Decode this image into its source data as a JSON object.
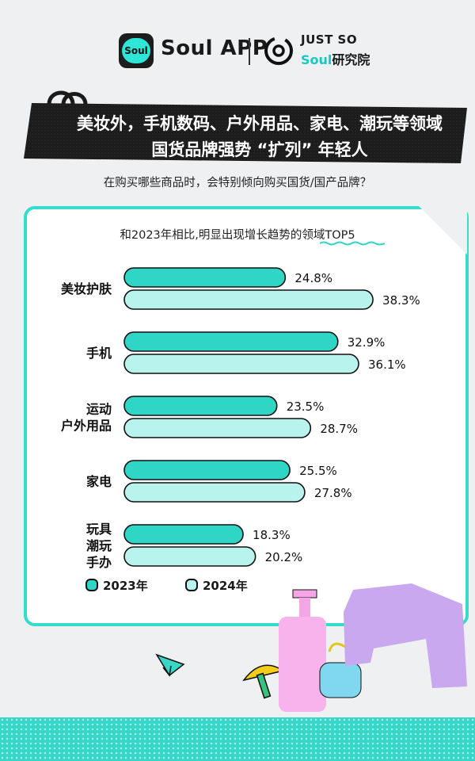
{
  "header": {
    "app_title": "Soul APP",
    "logo_text": "Soul",
    "partner_top": "JUST SO",
    "partner_bottom_brand": "Soul",
    "partner_bottom_text": "研究院"
  },
  "headline": {
    "line1": "美妆外，手机数码、户外用品、家电、潮玩等领域",
    "line2": "国货品牌强势 “扩列” 年轻人"
  },
  "question": "在购买哪些商品时，会特别倾向购买国货/国产品牌？",
  "chart_title": "和2023年相比,明显出现增长趋势的领域TOP5",
  "colors": {
    "series_2023": "#2fd6c6",
    "series_2024": "#b9f3ee",
    "outline": "#111111",
    "card_border": "#34dccc"
  },
  "chart_data": {
    "type": "bar",
    "orientation": "horizontal",
    "title": "和2023年相比,明显出现增长趋势的领域TOP5",
    "categories": [
      [
        "美妆护肤"
      ],
      [
        "手机"
      ],
      [
        "运动",
        "户外用品"
      ],
      [
        "家电"
      ],
      [
        "玩具",
        "潮玩",
        "手办"
      ]
    ],
    "series": [
      {
        "name": "2023年",
        "values": [
          24.8,
          32.9,
          23.5,
          25.5,
          18.3
        ],
        "labels": [
          "24.8%",
          "32.9%",
          "23.5%",
          "25.5%",
          "18.3%"
        ]
      },
      {
        "name": "2024年",
        "values": [
          38.3,
          36.1,
          28.7,
          27.8,
          20.2
        ],
        "labels": [
          "38.3%",
          "36.1%",
          "28.7%",
          "27.8%",
          "20.2%"
        ]
      }
    ],
    "unit": "%",
    "legend_position": "bottom-left",
    "grid": false
  }
}
